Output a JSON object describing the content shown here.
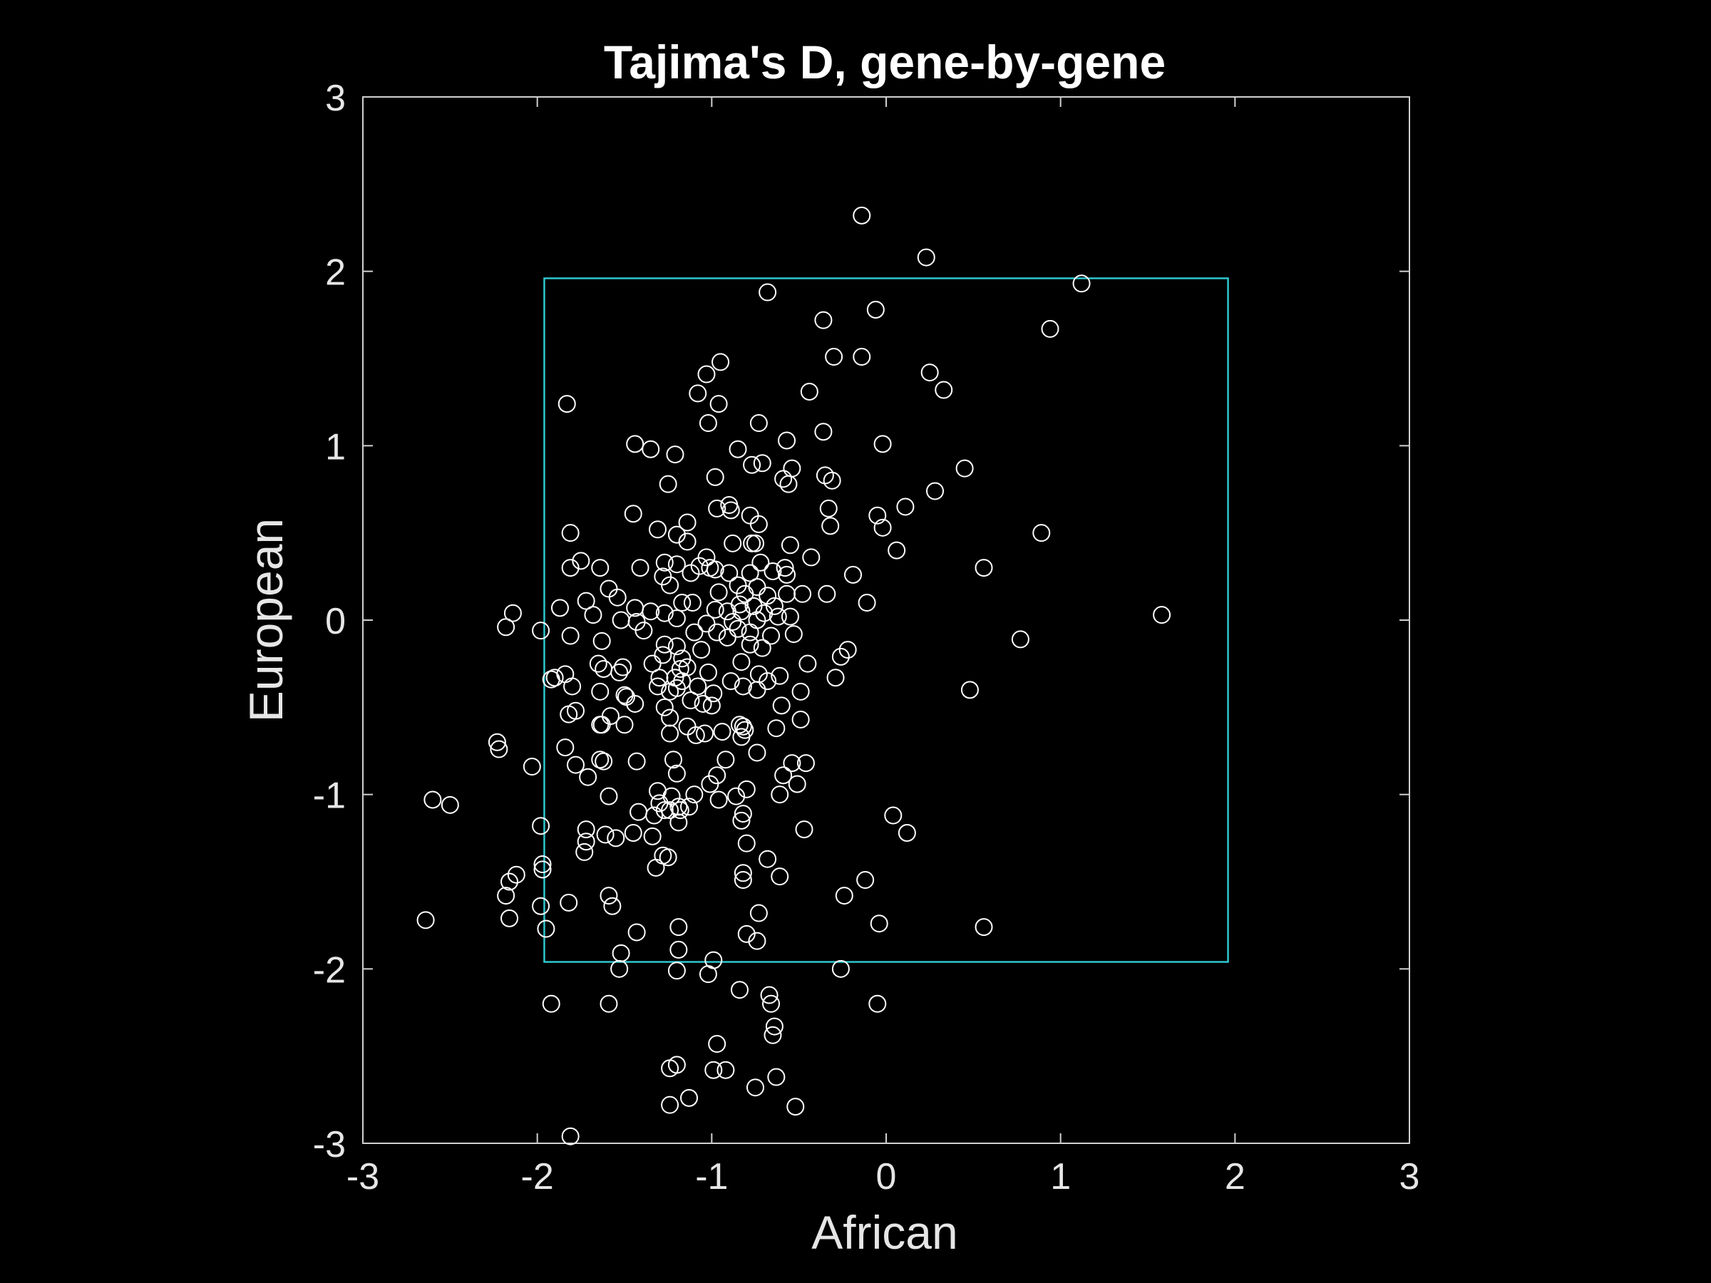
{
  "chart_data": {
    "type": "scatter",
    "title": "Tajima's D, gene-by-gene",
    "xlabel": "African",
    "ylabel": "European",
    "xlim": [
      -3,
      3
    ],
    "ylim": [
      -3,
      3
    ],
    "xticks": [
      -3,
      -2,
      -1,
      0,
      1,
      2,
      3
    ],
    "yticks": [
      -3,
      -2,
      -1,
      0,
      1,
      2,
      3
    ],
    "xtick_labels": [
      "-3",
      "-2",
      "-1",
      "0",
      "1",
      "2",
      "3"
    ],
    "ytick_labels": [
      "-3",
      "-2",
      "-1",
      "0",
      "1",
      "2",
      "3"
    ],
    "grid": false,
    "box": {
      "x": [
        -1.96,
        1.96
      ],
      "y": [
        -1.96,
        1.96
      ],
      "color": "#2ec7cf"
    },
    "marker_color": "#ffffff",
    "background": "#000000",
    "series": [
      {
        "marker": "open-circle",
        "points": [
          [
            -0.14,
            2.32
          ],
          [
            0.23,
            2.08
          ],
          [
            1.12,
            1.93
          ],
          [
            -0.68,
            1.88
          ],
          [
            -0.06,
            1.78
          ],
          [
            -0.36,
            1.72
          ],
          [
            0.94,
            1.67
          ],
          [
            -0.3,
            1.51
          ],
          [
            -0.14,
            1.51
          ],
          [
            -0.95,
            1.48
          ],
          [
            0.25,
            1.42
          ],
          [
            -1.03,
            1.41
          ],
          [
            0.33,
            1.32
          ],
          [
            -0.44,
            1.31
          ],
          [
            -1.08,
            1.3
          ],
          [
            -0.96,
            1.24
          ],
          [
            -1.83,
            1.24
          ],
          [
            -1.02,
            1.13
          ],
          [
            -0.73,
            1.13
          ],
          [
            -0.36,
            1.08
          ],
          [
            -0.57,
            1.03
          ],
          [
            -0.02,
            1.01
          ],
          [
            -1.44,
            1.01
          ],
          [
            -1.35,
            0.98
          ],
          [
            -0.85,
            0.98
          ],
          [
            -1.21,
            0.95
          ],
          [
            -0.77,
            0.89
          ],
          [
            -0.71,
            0.9
          ],
          [
            -0.54,
            0.87
          ],
          [
            0.45,
            0.87
          ],
          [
            -0.35,
            0.83
          ],
          [
            -0.98,
            0.82
          ],
          [
            -0.59,
            0.81
          ],
          [
            -0.31,
            0.8
          ],
          [
            -0.56,
            0.78
          ],
          [
            -1.25,
            0.78
          ],
          [
            0.28,
            0.74
          ],
          [
            0.11,
            0.65
          ],
          [
            -0.9,
            0.66
          ],
          [
            -0.97,
            0.64
          ],
          [
            -0.89,
            0.63
          ],
          [
            -0.33,
            0.64
          ],
          [
            -0.05,
            0.6
          ],
          [
            -0.78,
            0.6
          ],
          [
            -1.45,
            0.61
          ],
          [
            -1.14,
            0.56
          ],
          [
            -0.73,
            0.55
          ],
          [
            -0.32,
            0.54
          ],
          [
            -0.02,
            0.53
          ],
          [
            0.89,
            0.5
          ],
          [
            -1.81,
            0.5
          ],
          [
            -1.31,
            0.52
          ],
          [
            -1.2,
            0.49
          ],
          [
            -0.77,
            0.44
          ],
          [
            -0.75,
            0.44
          ],
          [
            -0.55,
            0.43
          ],
          [
            -1.14,
            0.45
          ],
          [
            -0.88,
            0.44
          ],
          [
            0.06,
            0.4
          ],
          [
            -0.43,
            0.36
          ],
          [
            -1.03,
            0.36
          ],
          [
            -1.27,
            0.33
          ],
          [
            -0.72,
            0.33
          ],
          [
            -1.75,
            0.34
          ],
          [
            -1.2,
            0.32
          ],
          [
            -0.58,
            0.3
          ],
          [
            -1.64,
            0.3
          ],
          [
            -1.41,
            0.3
          ],
          [
            -1.07,
            0.31
          ],
          [
            -1.01,
            0.3
          ],
          [
            -1.81,
            0.3
          ],
          [
            -0.9,
            0.27
          ],
          [
            -0.65,
            0.28
          ],
          [
            -0.78,
            0.27
          ],
          [
            -0.57,
            0.26
          ],
          [
            -1.12,
            0.27
          ],
          [
            -0.98,
            0.29
          ],
          [
            -0.19,
            0.26
          ],
          [
            0.56,
            0.3
          ],
          [
            -1.28,
            0.25
          ],
          [
            -1.24,
            0.2
          ],
          [
            -0.74,
            0.19
          ],
          [
            -0.85,
            0.2
          ],
          [
            -1.59,
            0.18
          ],
          [
            -0.96,
            0.16
          ],
          [
            -0.81,
            0.15
          ],
          [
            -0.68,
            0.14
          ],
          [
            -0.57,
            0.15
          ],
          [
            -0.48,
            0.15
          ],
          [
            -0.34,
            0.15
          ],
          [
            -1.54,
            0.13
          ],
          [
            -1.72,
            0.11
          ],
          [
            -1.17,
            0.1
          ],
          [
            -1.11,
            0.1
          ],
          [
            -0.84,
            0.09
          ],
          [
            -0.76,
            0.08
          ],
          [
            -0.64,
            0.08
          ],
          [
            -0.11,
            0.1
          ],
          [
            -1.44,
            0.07
          ],
          [
            -1.35,
            0.05
          ],
          [
            -1.27,
            0.04
          ],
          [
            -0.98,
            0.06
          ],
          [
            -0.91,
            0.05
          ],
          [
            -0.83,
            0.05
          ],
          [
            -0.7,
            0.04
          ],
          [
            -1.87,
            0.07
          ],
          [
            -2.14,
            0.04
          ],
          [
            -1.68,
            0.03
          ],
          [
            -1.52,
            0.0
          ],
          [
            -1.43,
            -0.01
          ],
          [
            -1.2,
            0.01
          ],
          [
            -1.03,
            -0.02
          ],
          [
            -0.88,
            -0.01
          ],
          [
            -0.74,
            0.0
          ],
          [
            -0.62,
            0.02
          ],
          [
            -0.55,
            0.02
          ],
          [
            1.58,
            0.03
          ],
          [
            -2.18,
            -0.04
          ],
          [
            -1.98,
            -0.06
          ],
          [
            -1.81,
            -0.09
          ],
          [
            -1.39,
            -0.06
          ],
          [
            -1.1,
            -0.07
          ],
          [
            -0.97,
            -0.07
          ],
          [
            -0.85,
            -0.05
          ],
          [
            -0.78,
            -0.07
          ],
          [
            -0.66,
            -0.09
          ],
          [
            -0.53,
            -0.08
          ],
          [
            0.77,
            -0.11
          ],
          [
            -1.63,
            -0.12
          ],
          [
            -1.27,
            -0.14
          ],
          [
            -1.2,
            -0.15
          ],
          [
            -1.06,
            -0.17
          ],
          [
            -0.91,
            -0.1
          ],
          [
            -0.78,
            -0.14
          ],
          [
            -0.71,
            -0.16
          ],
          [
            -0.22,
            -0.17
          ],
          [
            -0.26,
            -0.21
          ],
          [
            -1.28,
            -0.2
          ],
          [
            -1.17,
            -0.22
          ],
          [
            -1.65,
            -0.25
          ],
          [
            -1.51,
            -0.27
          ],
          [
            -1.34,
            -0.25
          ],
          [
            -1.18,
            -0.28
          ],
          [
            -1.14,
            -0.27
          ],
          [
            -0.83,
            -0.24
          ],
          [
            -0.45,
            -0.25
          ],
          [
            -1.62,
            -0.28
          ],
          [
            -1.53,
            -0.3
          ],
          [
            -1.3,
            -0.33
          ],
          [
            -1.21,
            -0.33
          ],
          [
            -1.02,
            -0.3
          ],
          [
            -0.73,
            -0.31
          ],
          [
            -0.61,
            -0.32
          ],
          [
            -0.29,
            -0.33
          ],
          [
            -1.84,
            -0.31
          ],
          [
            -1.92,
            -0.34
          ],
          [
            -1.9,
            -0.33
          ],
          [
            -1.17,
            -0.35
          ],
          [
            -0.89,
            -0.35
          ],
          [
            -0.68,
            -0.35
          ],
          [
            -1.31,
            -0.38
          ],
          [
            -1.2,
            -0.39
          ],
          [
            -1.08,
            -0.38
          ],
          [
            -0.82,
            -0.38
          ],
          [
            -0.74,
            -0.4
          ],
          [
            -1.8,
            -0.38
          ],
          [
            -1.64,
            -0.41
          ],
          [
            -1.5,
            -0.43
          ],
          [
            -1.24,
            -0.41
          ],
          [
            -0.99,
            -0.42
          ],
          [
            -0.49,
            -0.41
          ],
          [
            0.48,
            -0.4
          ],
          [
            -1.49,
            -0.44
          ],
          [
            -1.44,
            -0.48
          ],
          [
            -1.12,
            -0.46
          ],
          [
            -1.05,
            -0.48
          ],
          [
            -1.0,
            -0.49
          ],
          [
            -0.6,
            -0.49
          ],
          [
            -1.27,
            -0.5
          ],
          [
            -1.78,
            -0.52
          ],
          [
            -1.82,
            -0.54
          ],
          [
            -1.58,
            -0.55
          ],
          [
            -1.24,
            -0.56
          ],
          [
            -0.49,
            -0.57
          ],
          [
            -1.64,
            -0.6
          ],
          [
            -1.63,
            -0.6
          ],
          [
            -1.5,
            -0.6
          ],
          [
            -1.14,
            -0.61
          ],
          [
            -0.84,
            -0.6
          ],
          [
            -0.82,
            -0.61
          ],
          [
            -0.63,
            -0.62
          ],
          [
            -0.81,
            -0.63
          ],
          [
            -1.24,
            -0.65
          ],
          [
            -1.09,
            -0.66
          ],
          [
            -1.04,
            -0.65
          ],
          [
            -0.94,
            -0.64
          ],
          [
            -0.83,
            -0.67
          ],
          [
            -2.23,
            -0.7
          ],
          [
            -2.22,
            -0.74
          ],
          [
            -1.84,
            -0.73
          ],
          [
            -0.74,
            -0.76
          ],
          [
            -1.64,
            -0.8
          ],
          [
            -1.22,
            -0.8
          ],
          [
            -1.62,
            -0.81
          ],
          [
            -1.43,
            -0.81
          ],
          [
            -0.92,
            -0.8
          ],
          [
            -0.54,
            -0.82
          ],
          [
            -0.46,
            -0.82
          ],
          [
            -2.03,
            -0.84
          ],
          [
            -1.78,
            -0.83
          ],
          [
            -1.71,
            -0.9
          ],
          [
            -1.2,
            -0.88
          ],
          [
            -0.97,
            -0.89
          ],
          [
            -0.59,
            -0.89
          ],
          [
            -1.01,
            -0.94
          ],
          [
            -0.51,
            -0.94
          ],
          [
            -1.59,
            -1.01
          ],
          [
            -1.31,
            -0.98
          ],
          [
            -1.23,
            -1.01
          ],
          [
            -1.1,
            -1.0
          ],
          [
            -0.8,
            -0.97
          ],
          [
            -0.61,
            -1.0
          ],
          [
            -2.6,
            -1.03
          ],
          [
            -2.5,
            -1.06
          ],
          [
            -0.86,
            -1.01
          ],
          [
            -1.3,
            -1.05
          ],
          [
            -1.19,
            -1.07
          ],
          [
            -1.27,
            -1.09
          ],
          [
            -1.24,
            -1.09
          ],
          [
            -1.13,
            -1.07
          ],
          [
            -0.96,
            -1.03
          ],
          [
            -1.42,
            -1.1
          ],
          [
            -1.33,
            -1.12
          ],
          [
            -1.18,
            -1.09
          ],
          [
            -0.82,
            -1.11
          ],
          [
            0.04,
            -1.12
          ],
          [
            -1.98,
            -1.18
          ],
          [
            -1.19,
            -1.16
          ],
          [
            -0.83,
            -1.15
          ],
          [
            -1.72,
            -1.2
          ],
          [
            -1.61,
            -1.23
          ],
          [
            -1.55,
            -1.25
          ],
          [
            -1.45,
            -1.22
          ],
          [
            -1.34,
            -1.24
          ],
          [
            -0.47,
            -1.2
          ],
          [
            0.12,
            -1.22
          ],
          [
            -1.72,
            -1.27
          ],
          [
            -0.8,
            -1.28
          ],
          [
            -1.73,
            -1.33
          ],
          [
            -1.28,
            -1.35
          ],
          [
            -1.25,
            -1.36
          ],
          [
            -0.68,
            -1.37
          ],
          [
            -1.97,
            -1.4
          ],
          [
            -1.97,
            -1.43
          ],
          [
            -1.32,
            -1.42
          ],
          [
            -0.82,
            -1.45
          ],
          [
            -0.61,
            -1.47
          ],
          [
            -2.12,
            -1.46
          ],
          [
            -2.16,
            -1.5
          ],
          [
            -0.82,
            -1.49
          ],
          [
            -0.12,
            -1.49
          ],
          [
            -2.18,
            -1.58
          ],
          [
            -1.59,
            -1.58
          ],
          [
            -0.24,
            -1.58
          ],
          [
            -1.82,
            -1.62
          ],
          [
            -1.57,
            -1.64
          ],
          [
            -1.98,
            -1.64
          ],
          [
            -2.64,
            -1.72
          ],
          [
            -2.16,
            -1.71
          ],
          [
            -0.73,
            -1.68
          ],
          [
            -0.04,
            -1.74
          ],
          [
            0.56,
            -1.76
          ],
          [
            -1.95,
            -1.77
          ],
          [
            -1.19,
            -1.76
          ],
          [
            -1.43,
            -1.79
          ],
          [
            -0.8,
            -1.8
          ],
          [
            -0.74,
            -1.84
          ],
          [
            -1.19,
            -1.89
          ],
          [
            -1.52,
            -1.91
          ],
          [
            -0.99,
            -1.95
          ],
          [
            -1.53,
            -2.0
          ],
          [
            -1.2,
            -2.01
          ],
          [
            -1.02,
            -2.03
          ],
          [
            -0.26,
            -2.0
          ],
          [
            -0.84,
            -2.12
          ],
          [
            -0.67,
            -2.15
          ],
          [
            -1.92,
            -2.2
          ],
          [
            -1.59,
            -2.2
          ],
          [
            -0.66,
            -2.2
          ],
          [
            -0.05,
            -2.2
          ],
          [
            -0.64,
            -2.33
          ],
          [
            -0.65,
            -2.38
          ],
          [
            -0.97,
            -2.43
          ],
          [
            -1.2,
            -2.55
          ],
          [
            -1.24,
            -2.57
          ],
          [
            -0.99,
            -2.58
          ],
          [
            -0.92,
            -2.58
          ],
          [
            -0.63,
            -2.62
          ],
          [
            -0.75,
            -2.68
          ],
          [
            -1.13,
            -2.74
          ],
          [
            -1.24,
            -2.78
          ],
          [
            -0.52,
            -2.79
          ],
          [
            -1.81,
            -2.96
          ]
        ]
      }
    ]
  }
}
